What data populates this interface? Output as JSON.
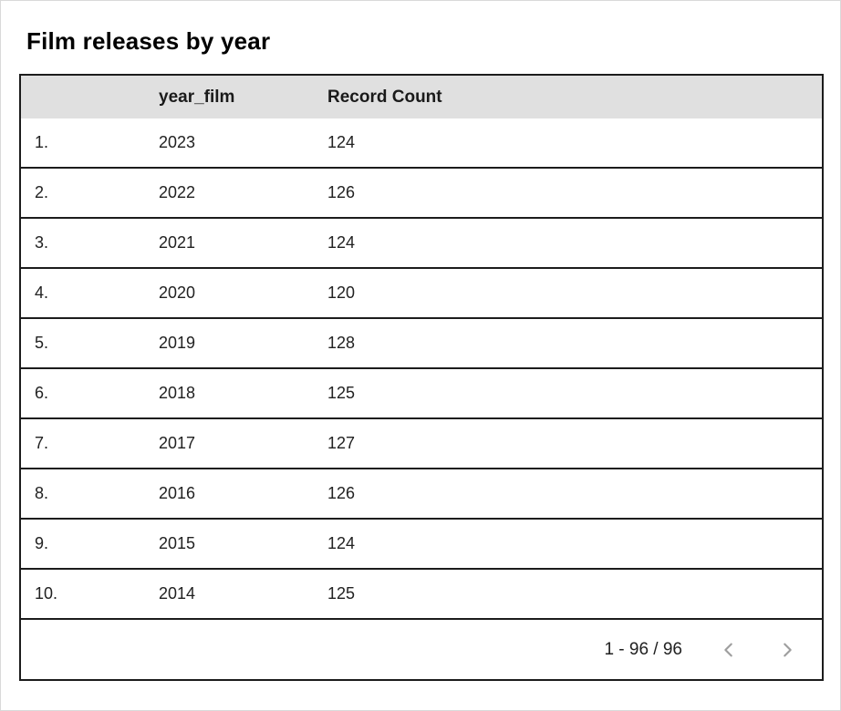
{
  "title": "Film releases by year",
  "table": {
    "columns": [
      "year_film",
      "Record Count"
    ],
    "rows": [
      {
        "index": "1.",
        "year_film": "2023",
        "record_count": "124"
      },
      {
        "index": "2.",
        "year_film": "2022",
        "record_count": "126"
      },
      {
        "index": "3.",
        "year_film": "2021",
        "record_count": "124"
      },
      {
        "index": "4.",
        "year_film": "2020",
        "record_count": "120"
      },
      {
        "index": "5.",
        "year_film": "2019",
        "record_count": "128"
      },
      {
        "index": "6.",
        "year_film": "2018",
        "record_count": "125"
      },
      {
        "index": "7.",
        "year_film": "2017",
        "record_count": "127"
      },
      {
        "index": "8.",
        "year_film": "2016",
        "record_count": "126"
      },
      {
        "index": "9.",
        "year_film": "2015",
        "record_count": "124"
      },
      {
        "index": "10.",
        "year_film": "2014",
        "record_count": "125"
      }
    ]
  },
  "pagination": {
    "range_label": "1 - 96 / 96",
    "prev_icon": "chevron-left",
    "next_icon": "chevron-right"
  },
  "colors": {
    "header_bg": "#e0e0e0",
    "table_border": "#1c1c1c",
    "outer_border": "#d9d9d9",
    "chevron": "#9e9e9e",
    "text": "#212121"
  },
  "chart_data": {
    "type": "table",
    "title": "Film releases by year",
    "columns": [
      "year_film",
      "Record Count"
    ],
    "rows": [
      [
        2023,
        124
      ],
      [
        2022,
        126
      ],
      [
        2021,
        124
      ],
      [
        2020,
        120
      ],
      [
        2019,
        128
      ],
      [
        2018,
        125
      ],
      [
        2017,
        127
      ],
      [
        2016,
        126
      ],
      [
        2015,
        124
      ],
      [
        2014,
        125
      ]
    ],
    "total_records": 96,
    "visible_range": "1 - 96 / 96"
  }
}
